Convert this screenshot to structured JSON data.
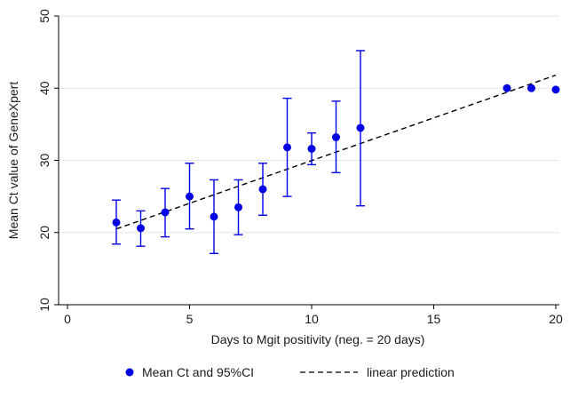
{
  "chart_data": {
    "type": "scatter",
    "title": "",
    "xlabel": "Days to Mgit positivity (neg. = 20 days)",
    "ylabel": "Mean Ct value of GeneXpert",
    "xlim": [
      0,
      20
    ],
    "ylim": [
      10,
      50
    ],
    "xticks": [
      0,
      5,
      10,
      15,
      20
    ],
    "yticks": [
      10,
      20,
      30,
      40,
      50
    ],
    "grid": "horizontal",
    "legend_position": "bottom",
    "colors": {
      "points": "#0000e6",
      "line": "#000000",
      "grid": "#e6e6e6"
    },
    "series": [
      {
        "name": "Mean Ct and 95%CI",
        "type": "scatter-errorbar",
        "points": [
          {
            "x": 2,
            "y": 21.4,
            "lo": 18.4,
            "hi": 24.5
          },
          {
            "x": 3,
            "y": 20.6,
            "lo": 18.1,
            "hi": 23.0
          },
          {
            "x": 4,
            "y": 22.8,
            "lo": 19.4,
            "hi": 26.1
          },
          {
            "x": 5,
            "y": 25.0,
            "lo": 20.5,
            "hi": 29.6
          },
          {
            "x": 6,
            "y": 22.2,
            "lo": 17.1,
            "hi": 27.3
          },
          {
            "x": 7,
            "y": 23.5,
            "lo": 19.7,
            "hi": 27.3
          },
          {
            "x": 8,
            "y": 26.0,
            "lo": 22.4,
            "hi": 29.6
          },
          {
            "x": 9,
            "y": 31.8,
            "lo": 25.0,
            "hi": 38.6
          },
          {
            "x": 10,
            "y": 31.6,
            "lo": 29.4,
            "hi": 33.8
          },
          {
            "x": 11,
            "y": 33.2,
            "lo": 28.3,
            "hi": 38.2
          },
          {
            "x": 12,
            "y": 34.5,
            "lo": 23.7,
            "hi": 45.2
          },
          {
            "x": 18,
            "y": 40.0
          },
          {
            "x": 19,
            "y": 40.0
          },
          {
            "x": 20,
            "y": 39.8
          }
        ]
      },
      {
        "name": "linear prediction",
        "type": "line",
        "style": "dashed",
        "x": [
          2,
          20
        ],
        "y": [
          20.5,
          41.8
        ]
      }
    ]
  }
}
